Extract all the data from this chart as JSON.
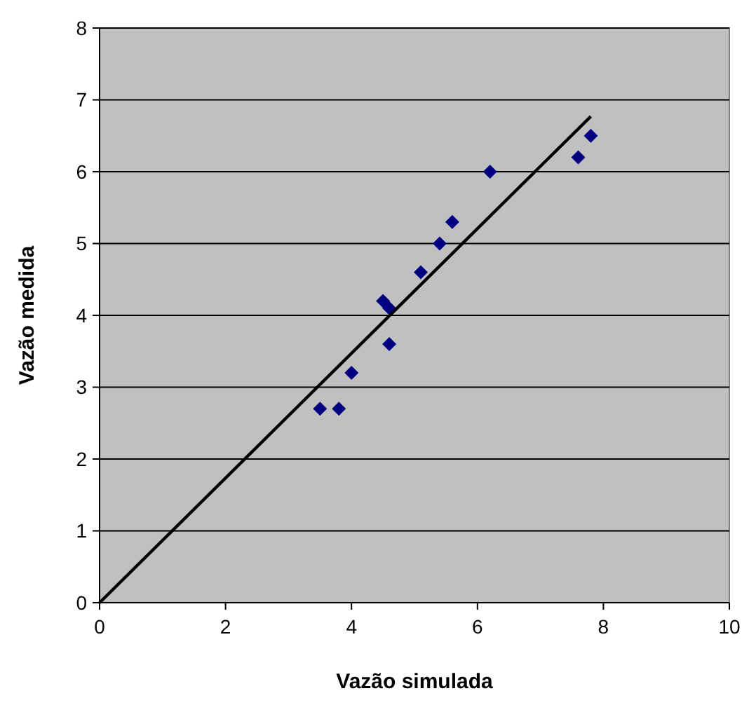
{
  "chart_data": {
    "type": "scatter",
    "xlabel": "Vazão simulada",
    "ylabel": "Vazão medida",
    "xlim": [
      0,
      10
    ],
    "xticks": [
      0,
      2,
      4,
      6,
      8,
      10
    ],
    "ylim": [
      0,
      8
    ],
    "yticks": [
      0,
      1,
      2,
      3,
      4,
      5,
      6,
      7,
      8
    ],
    "grid": "y",
    "series": [
      {
        "marker": "diamond",
        "color": "#000080",
        "x": [
          3.5,
          3.8,
          4.0,
          4.5,
          4.6,
          4.6,
          5.1,
          5.4,
          5.6,
          6.2,
          7.6,
          7.8
        ],
        "values": [
          2.7,
          2.7,
          3.2,
          4.2,
          4.1,
          3.6,
          4.6,
          5.0,
          5.3,
          6.0,
          6.2,
          6.5
        ]
      },
      {
        "type": "line",
        "color": "#000000",
        "x": [
          0,
          7.8
        ],
        "values": [
          0,
          6.77
        ],
        "line_style": "solid",
        "marker": "none"
      }
    ]
  }
}
